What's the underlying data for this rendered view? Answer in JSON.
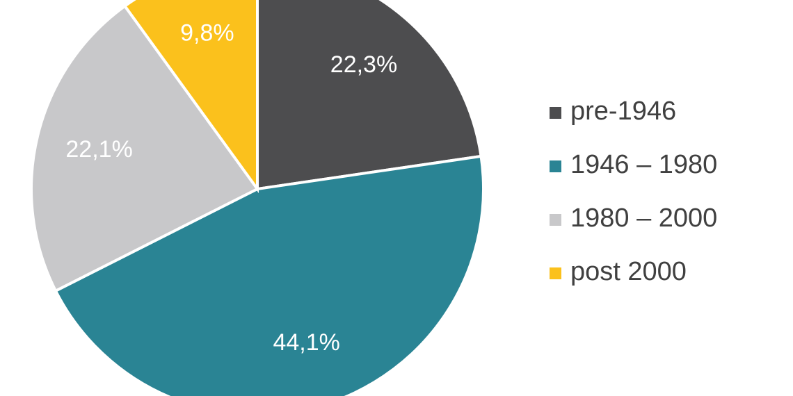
{
  "chart_data": {
    "type": "pie",
    "categories": [
      "pre-1946",
      "1946 – 1980",
      "1980 – 2000",
      "post 2000"
    ],
    "values": [
      22.3,
      44.1,
      22.1,
      9.8
    ],
    "value_labels": [
      "22,3%",
      "44,1%",
      "22,1%",
      "9,8%"
    ],
    "colors": [
      "#4d4d4f",
      "#2a8494",
      "#c8c8ca",
      "#fbc11c"
    ],
    "legend": "right"
  }
}
